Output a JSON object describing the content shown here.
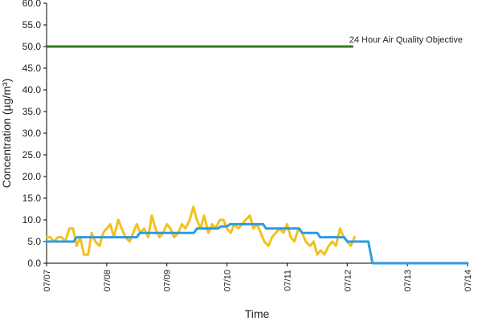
{
  "chart_data": {
    "type": "line",
    "title": "",
    "xlabel": "Time",
    "ylabel": "Concentration (µg/m³)",
    "xlim": [
      "07/07",
      "07/14"
    ],
    "ylim": [
      0,
      60
    ],
    "y_ticks": [
      "0.0",
      "5.0",
      "10.0",
      "15.0",
      "20.0",
      "25.0",
      "30.0",
      "35.0",
      "40.0",
      "45.0",
      "50.0",
      "55.0",
      "60.0"
    ],
    "x_tick_labels": [
      "07/07",
      "07/08",
      "07/09",
      "07/10",
      "07/11",
      "07/12",
      "07/13",
      "07/14"
    ],
    "grid": false,
    "legend": "none",
    "reference_line": {
      "label": "24 Hour Air Quality Objective",
      "value": 50,
      "x_start": 0,
      "x_end": 5.1,
      "color": "#2e7d1a"
    },
    "series": [
      {
        "color": "#f2c11d",
        "x": [
          0,
          0.06,
          0.12,
          0.19,
          0.25,
          0.31,
          0.38,
          0.44,
          0.5,
          0.56,
          0.62,
          0.69,
          0.75,
          0.81,
          0.88,
          0.94,
          1.0,
          1.06,
          1.12,
          1.19,
          1.25,
          1.31,
          1.38,
          1.44,
          1.5,
          1.56,
          1.62,
          1.69,
          1.75,
          1.81,
          1.88,
          1.94,
          2.0,
          2.06,
          2.12,
          2.19,
          2.25,
          2.31,
          2.38,
          2.44,
          2.5,
          2.56,
          2.62,
          2.69,
          2.75,
          2.81,
          2.88,
          2.94,
          3.0,
          3.06,
          3.12,
          3.19,
          3.25,
          3.31,
          3.38,
          3.44,
          3.5,
          3.56,
          3.62,
          3.69,
          3.75,
          3.81,
          3.88,
          3.94,
          4.0,
          4.06,
          4.12,
          4.19,
          4.25,
          4.31,
          4.38,
          4.44,
          4.5,
          4.56,
          4.62,
          4.69,
          4.75,
          4.81,
          4.88,
          4.94,
          5.0,
          5.06,
          5.12,
          5.19
        ],
        "y": [
          6,
          6,
          5,
          6,
          6,
          5,
          8,
          8,
          4,
          6,
          2,
          2,
          7,
          5,
          4,
          7,
          8,
          9,
          6,
          10,
          8,
          6,
          5,
          7,
          9,
          7,
          8,
          6,
          11,
          8,
          6,
          7,
          9,
          8,
          6,
          7,
          9,
          8,
          10,
          13,
          10,
          8,
          11,
          7,
          9,
          8,
          10,
          10,
          8,
          7,
          9,
          8,
          9,
          10,
          11,
          8,
          9,
          7,
          5,
          4,
          6,
          7,
          8,
          7,
          9,
          6,
          5,
          8,
          7,
          5,
          4,
          5,
          2,
          3,
          2,
          4,
          5,
          4,
          8,
          6,
          5,
          4,
          6,
          null
        ]
      },
      {
        "color": "#2b9be3",
        "x": [
          0,
          0.45,
          0.5,
          1.0,
          1.05,
          1.5,
          1.55,
          2.0,
          2.05,
          2.45,
          2.5,
          2.85,
          2.9,
          3.0,
          3.05,
          3.6,
          3.65,
          3.85,
          3.9,
          4.2,
          4.25,
          4.5,
          4.55,
          4.95,
          5.0,
          5.35,
          5.42,
          7.0
        ],
        "y": [
          5,
          5,
          6,
          6,
          6,
          6,
          7,
          7,
          7,
          7,
          8,
          8,
          8.5,
          8.5,
          9,
          9,
          8,
          8,
          8,
          8,
          7,
          7,
          6,
          6,
          5,
          5,
          0,
          0
        ]
      }
    ]
  }
}
